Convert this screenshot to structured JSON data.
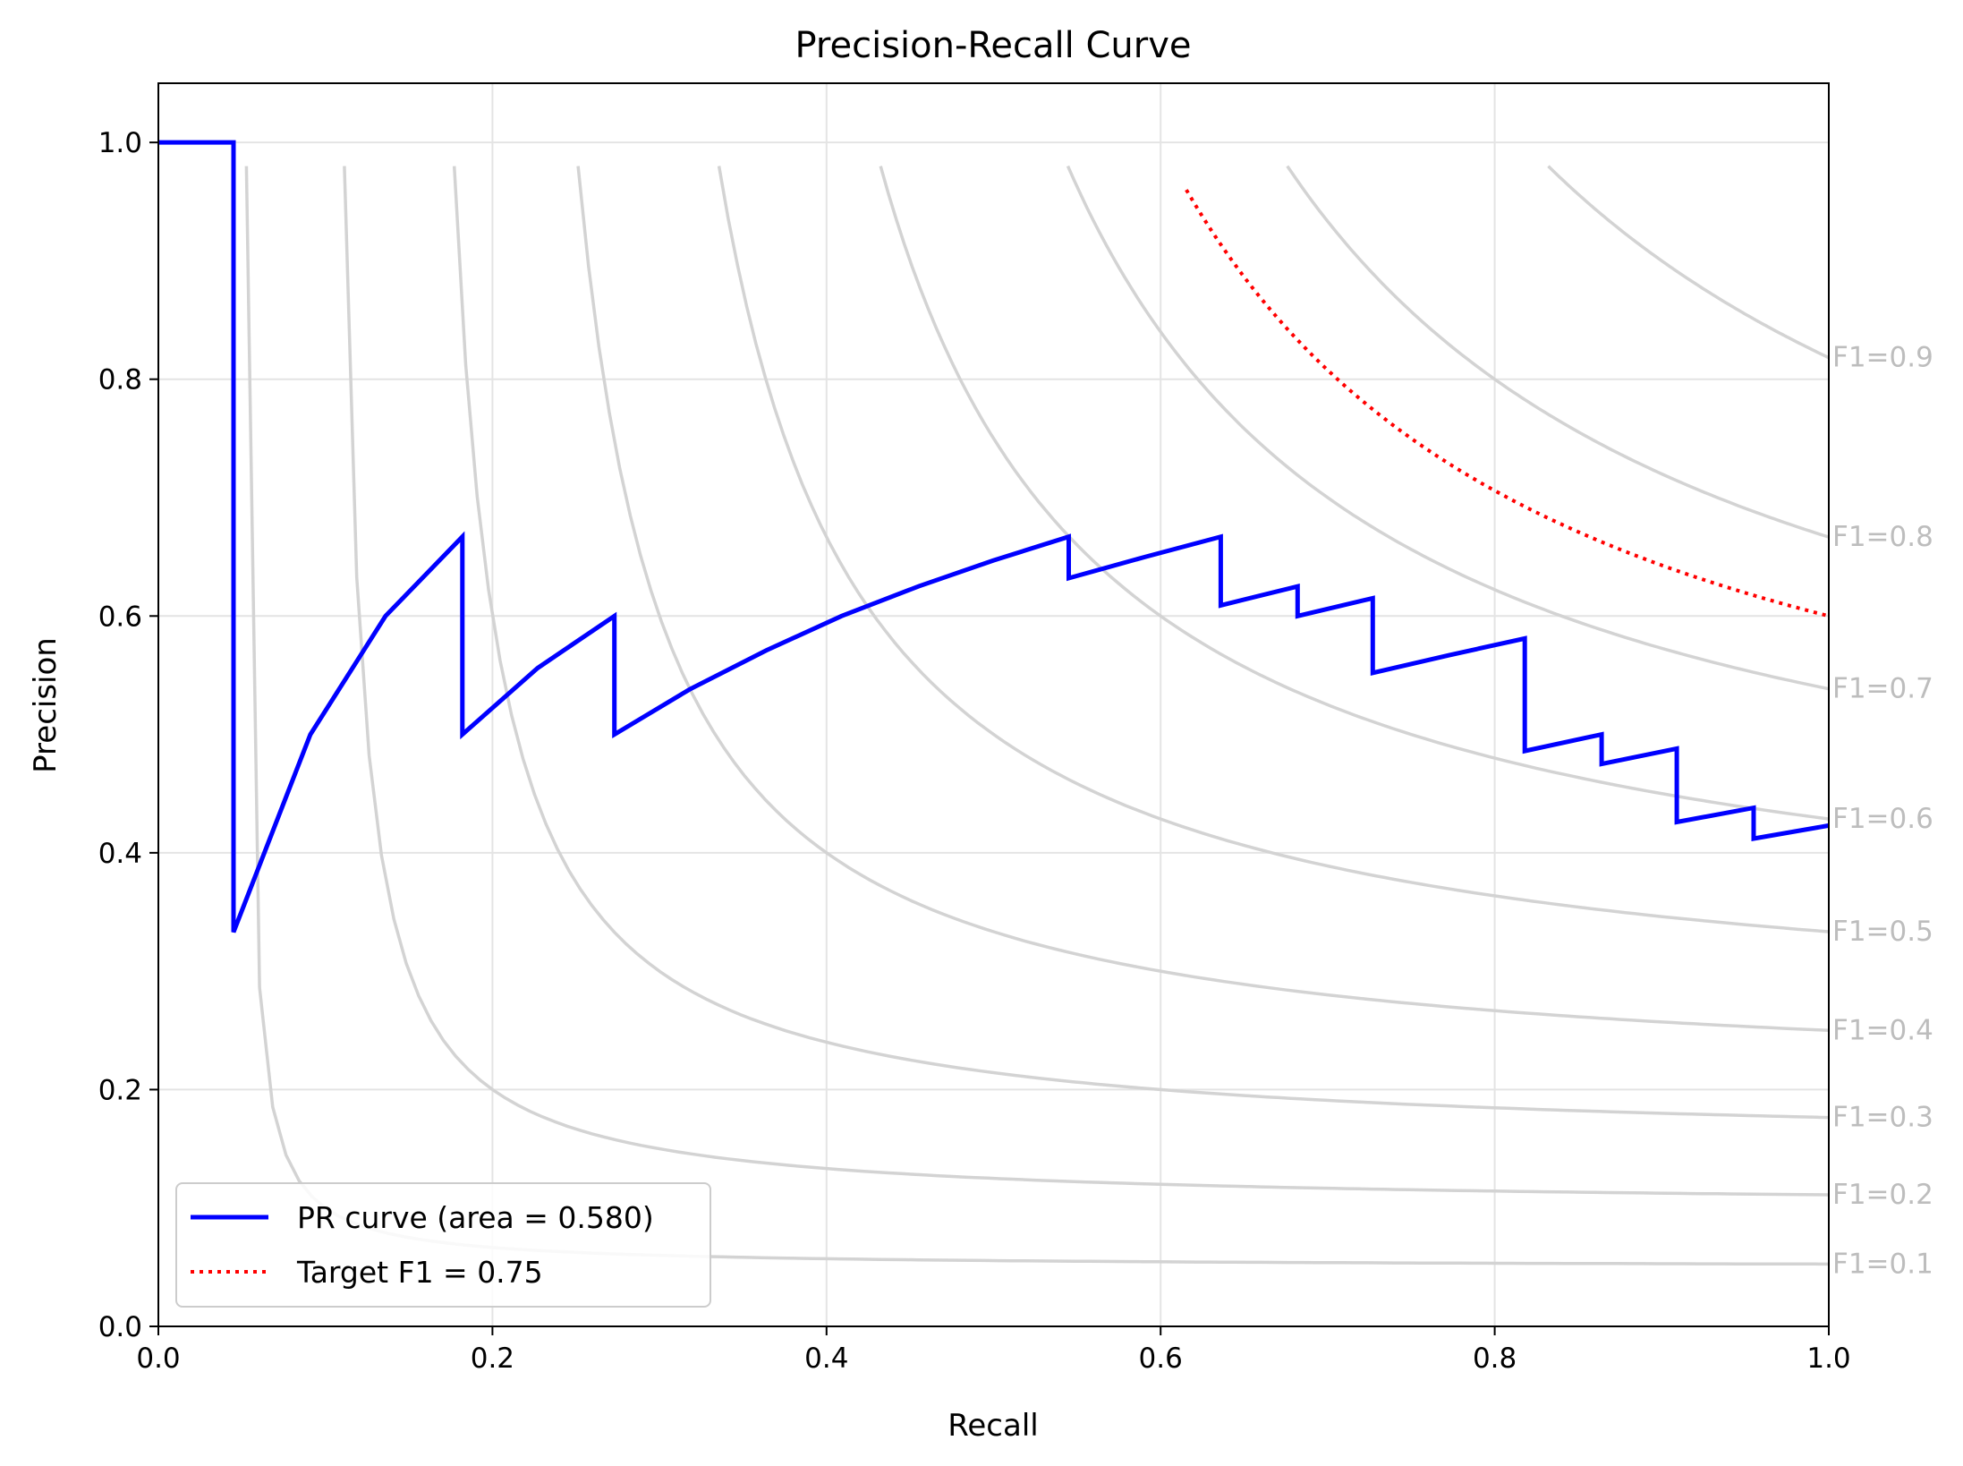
{
  "chart_data": {
    "type": "line",
    "title": "Precision-Recall Curve",
    "xlabel": "Recall",
    "ylabel": "Precision",
    "xlim": [
      0.0,
      1.0
    ],
    "ylim": [
      0.0,
      1.05
    ],
    "xticks": [
      "0.0",
      "0.2",
      "0.4",
      "0.6",
      "0.8",
      "1.0"
    ],
    "yticks": [
      "0.0",
      "0.2",
      "0.4",
      "0.6",
      "0.8",
      "1.0"
    ],
    "grid": true,
    "legend_position": "lower-left",
    "series": [
      {
        "name": "PR curve (area = 0.580)",
        "color": "#0000ff",
        "style": "solid",
        "points": [
          [
            0.0,
            1.0
          ],
          [
            0.045,
            1.0
          ],
          [
            0.045,
            0.333
          ],
          [
            0.091,
            0.5
          ],
          [
            0.136,
            0.6
          ],
          [
            0.182,
            0.667
          ],
          [
            0.182,
            0.5
          ],
          [
            0.227,
            0.556
          ],
          [
            0.273,
            0.6
          ],
          [
            0.273,
            0.5
          ],
          [
            0.318,
            0.538
          ],
          [
            0.364,
            0.571
          ],
          [
            0.409,
            0.6
          ],
          [
            0.455,
            0.625
          ],
          [
            0.5,
            0.647
          ],
          [
            0.545,
            0.667
          ],
          [
            0.545,
            0.632
          ],
          [
            0.591,
            0.65
          ],
          [
            0.636,
            0.667
          ],
          [
            0.636,
            0.609
          ],
          [
            0.682,
            0.625
          ],
          [
            0.682,
            0.6
          ],
          [
            0.727,
            0.615
          ],
          [
            0.727,
            0.552
          ],
          [
            0.773,
            0.567
          ],
          [
            0.818,
            0.581
          ],
          [
            0.818,
            0.486
          ],
          [
            0.864,
            0.5
          ],
          [
            0.864,
            0.475
          ],
          [
            0.909,
            0.488
          ],
          [
            0.909,
            0.426
          ],
          [
            0.955,
            0.438
          ],
          [
            0.955,
            0.412
          ],
          [
            1.0,
            0.423
          ]
        ]
      },
      {
        "name": "Target F1 = 0.75",
        "color": "#ff0000",
        "style": "dotted",
        "f1": 0.75
      }
    ],
    "iso_f1": {
      "color": "#d3d3d3",
      "label_color": "#bdbdbd",
      "values": [
        0.1,
        0.2,
        0.3,
        0.4,
        0.5,
        0.6,
        0.7,
        0.8,
        0.9
      ],
      "labels": [
        "F1=0.1",
        "F1=0.2",
        "F1=0.3",
        "F1=0.4",
        "F1=0.5",
        "F1=0.6",
        "F1=0.7",
        "F1=0.8",
        "F1=0.9"
      ]
    }
  }
}
